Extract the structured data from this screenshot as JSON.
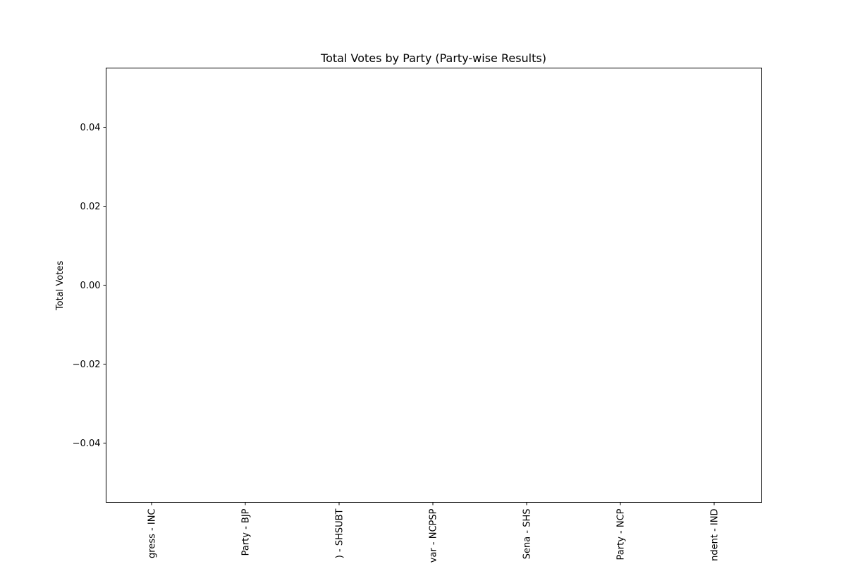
{
  "chart_data": {
    "type": "bar",
    "title": "Total Votes by Party (Party-wise Results)",
    "xlabel": "",
    "ylabel": "Total Votes",
    "categories": [
      "gress - INC",
      "Party - BJP",
      ") - SHSUBT",
      "var - NCPSP",
      "Sena - SHS",
      "Party - NCP",
      "ndent - IND"
    ],
    "values": [
      0,
      0,
      0,
      0,
      0,
      0,
      0
    ],
    "ylim": [
      -0.055,
      0.055
    ],
    "yticks": [
      -0.04,
      -0.02,
      0.0,
      0.02,
      0.04
    ],
    "ytick_labels": [
      "−0.04",
      "−0.02",
      "0.00",
      "0.02",
      "0.04"
    ],
    "grid": false,
    "legend": "none"
  }
}
